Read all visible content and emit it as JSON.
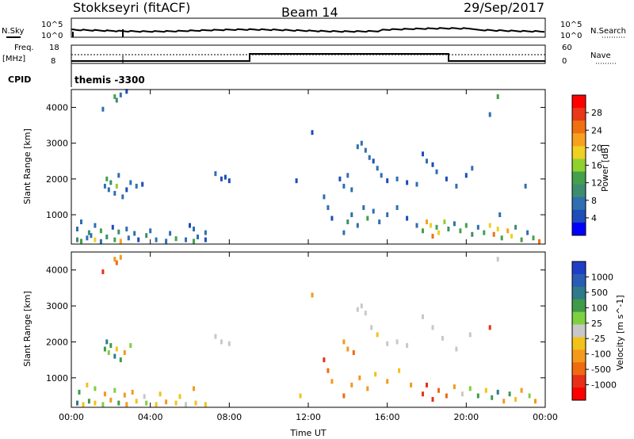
{
  "header": {
    "station": "Stokkseyri (fitACF)",
    "beam": "Beam 14",
    "date": "29/Sep/2017"
  },
  "top_panels": {
    "nsky_label": "N.Sky",
    "nsky_ticks": [
      "10^5",
      "10^0"
    ],
    "nsearch_label": "N.Search",
    "nsearch_ticks": [
      "10^5",
      "10^0"
    ],
    "freq_label_1": "Freq.",
    "freq_label_2": "[MHz]",
    "freq_ticks": [
      "18",
      "8"
    ],
    "nave_label": "Nave",
    "nave_ticks": [
      "60",
      "0"
    ],
    "cpid_label": "CPID",
    "cpid_value": "themis -3300"
  },
  "colors": {
    "power_scale": [
      "#0000ff",
      "#1d4db8",
      "#2f6fb0",
      "#3e8c6f",
      "#44a04a",
      "#8fd12e",
      "#f0d020",
      "#f7a020",
      "#f07010",
      "#e83818",
      "#ff0000"
    ],
    "velocity_scale": [
      "#1e3ec8",
      "#2a5bb5",
      "#2e7a8a",
      "#3f9a4a",
      "#7ed040",
      "#c8c8c8",
      "#f2c21a",
      "#f49a1a",
      "#f06a10",
      "#e83018",
      "#ff0000"
    ]
  },
  "chart_data": [
    {
      "type": "heatmap",
      "name": "power-panel",
      "xlabel": "Time UT",
      "ylabel": "Slant Range [km]",
      "x_ticks": [
        "00:00",
        "04:00",
        "08:00",
        "12:00",
        "16:00",
        "20:00",
        "00:00"
      ],
      "x_range_hours": [
        0,
        24
      ],
      "y_ticks": [
        1000,
        2000,
        3000,
        4000
      ],
      "y_range_km": [
        180,
        4500
      ],
      "colorbar_label": "Power [dB]",
      "colorbar_ticks": [
        "4",
        "8",
        "12",
        "16",
        "20",
        "24",
        "28"
      ],
      "colorbar_range": [
        0,
        30
      ],
      "points": [
        [
          0.3,
          300,
          10
        ],
        [
          0.5,
          260,
          14
        ],
        [
          0.8,
          350,
          6
        ],
        [
          1.0,
          420,
          8
        ],
        [
          1.2,
          300,
          18
        ],
        [
          1.5,
          250,
          6
        ],
        [
          1.8,
          380,
          9
        ],
        [
          2.2,
          300,
          12
        ],
        [
          2.5,
          260,
          22
        ],
        [
          2.9,
          350,
          7
        ],
        [
          3.4,
          300,
          5
        ],
        [
          3.8,
          420,
          10
        ],
        [
          4.3,
          300,
          6
        ],
        [
          4.8,
          260,
          8
        ],
        [
          5.3,
          330,
          12
        ],
        [
          5.8,
          300,
          6
        ],
        [
          6.2,
          260,
          14
        ],
        [
          6.4,
          380,
          8
        ],
        [
          6.8,
          300,
          5
        ],
        [
          0.3,
          600,
          8
        ],
        [
          0.5,
          800,
          6
        ],
        [
          0.9,
          500,
          10
        ],
        [
          1.2,
          700,
          7
        ],
        [
          1.5,
          550,
          12
        ],
        [
          2.1,
          650,
          5
        ],
        [
          2.4,
          520,
          9
        ],
        [
          2.8,
          600,
          6
        ],
        [
          3.2,
          480,
          8
        ],
        [
          4.0,
          550,
          6
        ],
        [
          5.0,
          480,
          6
        ],
        [
          6.0,
          700,
          5
        ],
        [
          6.2,
          600,
          7
        ],
        [
          6.8,
          500,
          6
        ],
        [
          1.7,
          1800,
          8
        ],
        [
          1.8,
          2000,
          12
        ],
        [
          1.9,
          1700,
          6
        ],
        [
          2.0,
          1900,
          10
        ],
        [
          2.2,
          1600,
          7
        ],
        [
          2.3,
          1800,
          16
        ],
        [
          2.4,
          2100,
          6
        ],
        [
          2.6,
          1500,
          8
        ],
        [
          2.8,
          1700,
          5
        ],
        [
          3.0,
          1900,
          6
        ],
        [
          3.3,
          1800,
          7
        ],
        [
          3.6,
          1850,
          5
        ],
        [
          2.2,
          4300,
          14
        ],
        [
          2.3,
          4200,
          10
        ],
        [
          2.5,
          4350,
          6
        ],
        [
          2.8,
          4450,
          5
        ],
        [
          1.6,
          3950,
          6
        ],
        [
          7.3,
          2150,
          6
        ],
        [
          7.6,
          2000,
          5
        ],
        [
          7.8,
          2050,
          4
        ],
        [
          8.0,
          1950,
          5
        ],
        [
          11.4,
          1950,
          5
        ],
        [
          12.8,
          1500,
          6
        ],
        [
          13.0,
          1200,
          8
        ],
        [
          13.2,
          900,
          5
        ],
        [
          12.2,
          3300,
          4
        ],
        [
          13.6,
          2000,
          5
        ],
        [
          13.8,
          1800,
          7
        ],
        [
          14.0,
          2100,
          6
        ],
        [
          14.2,
          1700,
          8
        ],
        [
          14.5,
          2900,
          6
        ],
        [
          14.7,
          3000,
          8
        ],
        [
          14.9,
          2800,
          7
        ],
        [
          15.1,
          2600,
          6
        ],
        [
          15.3,
          2500,
          5
        ],
        [
          15.5,
          2300,
          7
        ],
        [
          15.7,
          2100,
          6
        ],
        [
          16.0,
          1950,
          5
        ],
        [
          16.5,
          2000,
          6
        ],
        [
          17.0,
          1900,
          5
        ],
        [
          17.5,
          1850,
          6
        ],
        [
          17.8,
          2700,
          5
        ],
        [
          18.0,
          2500,
          6
        ],
        [
          18.3,
          2400,
          5
        ],
        [
          18.5,
          2200,
          7
        ],
        [
          19.0,
          2000,
          5
        ],
        [
          19.5,
          1800,
          6
        ],
        [
          20.0,
          2100,
          5
        ],
        [
          20.3,
          2300,
          6
        ],
        [
          13.8,
          500,
          8
        ],
        [
          14.0,
          800,
          10
        ],
        [
          14.2,
          1000,
          6
        ],
        [
          14.5,
          700,
          8
        ],
        [
          14.8,
          1200,
          6
        ],
        [
          15.0,
          900,
          12
        ],
        [
          15.3,
          1100,
          7
        ],
        [
          15.6,
          800,
          6
        ],
        [
          16.0,
          1000,
          8
        ],
        [
          16.5,
          1200,
          6
        ],
        [
          17.0,
          900,
          5
        ],
        [
          17.5,
          700,
          8
        ],
        [
          17.8,
          550,
          14
        ],
        [
          18.0,
          800,
          22
        ],
        [
          18.2,
          700,
          18
        ],
        [
          18.3,
          400,
          24
        ],
        [
          18.5,
          650,
          12
        ],
        [
          18.6,
          500,
          20
        ],
        [
          18.9,
          800,
          16
        ],
        [
          19.1,
          600,
          10
        ],
        [
          19.4,
          750,
          8
        ],
        [
          19.7,
          550,
          14
        ],
        [
          20.0,
          700,
          12
        ],
        [
          20.3,
          450,
          10
        ],
        [
          20.6,
          650,
          8
        ],
        [
          20.9,
          500,
          12
        ],
        [
          21.2,
          700,
          18
        ],
        [
          21.4,
          450,
          26
        ],
        [
          21.6,
          600,
          20
        ],
        [
          21.8,
          350,
          14
        ],
        [
          22.1,
          550,
          22
        ],
        [
          22.3,
          400,
          18
        ],
        [
          22.5,
          650,
          10
        ],
        [
          22.8,
          300,
          12
        ],
        [
          23.1,
          500,
          8
        ],
        [
          23.4,
          350,
          14
        ],
        [
          23.7,
          250,
          24
        ],
        [
          21.6,
          4300,
          14
        ],
        [
          21.2,
          3800,
          8
        ],
        [
          23.0,
          1800,
          6
        ],
        [
          21.7,
          1000,
          6
        ]
      ]
    },
    {
      "type": "heatmap",
      "name": "velocity-panel",
      "xlabel": "Time UT",
      "ylabel": "Slant Range [km]",
      "x_ticks": [
        "00:00",
        "04:00",
        "08:00",
        "12:00",
        "16:00",
        "20:00",
        "00:00"
      ],
      "x_range_hours": [
        0,
        24
      ],
      "y_ticks": [
        1000,
        2000,
        3000,
        4000
      ],
      "y_range_km": [
        180,
        4500
      ],
      "colorbar_label": "Velocity [m s^-1]",
      "colorbar_ticks": [
        "1000",
        "500",
        "100",
        "25",
        "-25",
        "-100",
        "-500",
        "-1000"
      ],
      "points": [
        [
          0.3,
          300,
          300
        ],
        [
          0.6,
          260,
          -80
        ],
        [
          0.9,
          350,
          150
        ],
        [
          1.2,
          300,
          -30
        ],
        [
          1.6,
          260,
          60
        ],
        [
          2.0,
          380,
          -200
        ],
        [
          2.4,
          300,
          120
        ],
        [
          2.8,
          260,
          -120
        ],
        [
          3.3,
          350,
          -60
        ],
        [
          3.8,
          300,
          80
        ],
        [
          4.3,
          260,
          -40
        ],
        [
          4.8,
          330,
          -150
        ],
        [
          5.3,
          300,
          -80
        ],
        [
          5.8,
          260,
          20
        ],
        [
          6.3,
          300,
          -100
        ],
        [
          6.8,
          260,
          -60
        ],
        [
          0.4,
          600,
          200
        ],
        [
          0.8,
          800,
          -100
        ],
        [
          1.2,
          700,
          60
        ],
        [
          1.7,
          550,
          -200
        ],
        [
          2.2,
          650,
          40
        ],
        [
          2.7,
          520,
          -150
        ],
        [
          3.1,
          600,
          -300
        ],
        [
          3.7,
          480,
          10
        ],
        [
          4.5,
          550,
          -80
        ],
        [
          5.5,
          480,
          -50
        ],
        [
          6.2,
          700,
          -120
        ],
        [
          1.7,
          1800,
          150
        ],
        [
          1.8,
          2000,
          400
        ],
        [
          1.9,
          1700,
          80
        ],
        [
          2.0,
          1900,
          200
        ],
        [
          2.2,
          1600,
          300
        ],
        [
          2.3,
          1800,
          -80
        ],
        [
          2.5,
          1500,
          100
        ],
        [
          2.7,
          1700,
          -150
        ],
        [
          3.0,
          1900,
          50
        ],
        [
          2.2,
          4300,
          -250
        ],
        [
          2.3,
          4200,
          -400
        ],
        [
          2.5,
          4350,
          -300
        ],
        [
          1.6,
          3950,
          -600
        ],
        [
          7.3,
          2150,
          10
        ],
        [
          7.6,
          2000,
          0
        ],
        [
          8.0,
          1950,
          -10
        ],
        [
          12.8,
          1500,
          -700
        ],
        [
          13.0,
          1200,
          -500
        ],
        [
          13.2,
          900,
          -200
        ],
        [
          11.6,
          500,
          -100
        ],
        [
          12.2,
          3300,
          -120
        ],
        [
          13.8,
          2000,
          -300
        ],
        [
          14.0,
          1800,
          -150
        ],
        [
          14.3,
          1700,
          -400
        ],
        [
          14.5,
          2900,
          10
        ],
        [
          14.7,
          3000,
          -20
        ],
        [
          14.9,
          2800,
          0
        ],
        [
          15.2,
          2400,
          -10
        ],
        [
          15.5,
          2200,
          -60
        ],
        [
          16.0,
          1950,
          5
        ],
        [
          16.5,
          2000,
          -10
        ],
        [
          17.0,
          1900,
          10
        ],
        [
          17.8,
          2700,
          0
        ],
        [
          18.3,
          2400,
          15
        ],
        [
          18.8,
          2100,
          -5
        ],
        [
          19.5,
          1800,
          0
        ],
        [
          20.2,
          2200,
          -10
        ],
        [
          13.8,
          500,
          -400
        ],
        [
          14.2,
          800,
          -150
        ],
        [
          14.6,
          1000,
          -300
        ],
        [
          15.0,
          700,
          -120
        ],
        [
          15.4,
          1100,
          -60
        ],
        [
          16.0,
          900,
          -200
        ],
        [
          16.6,
          1200,
          -80
        ],
        [
          17.2,
          800,
          -300
        ],
        [
          17.8,
          550,
          -800
        ],
        [
          18.0,
          800,
          -600
        ],
        [
          18.3,
          400,
          -900
        ],
        [
          18.6,
          650,
          -400
        ],
        [
          19.0,
          500,
          -500
        ],
        [
          19.4,
          750,
          -120
        ],
        [
          19.8,
          550,
          20
        ],
        [
          20.2,
          700,
          80
        ],
        [
          20.6,
          500,
          150
        ],
        [
          21.0,
          650,
          -60
        ],
        [
          21.3,
          450,
          200
        ],
        [
          21.6,
          600,
          400
        ],
        [
          21.9,
          350,
          -200
        ],
        [
          22.2,
          550,
          100
        ],
        [
          22.5,
          400,
          -80
        ],
        [
          22.8,
          650,
          -300
        ],
        [
          23.2,
          500,
          30
        ],
        [
          23.5,
          350,
          -150
        ],
        [
          21.6,
          4300,
          -20
        ],
        [
          21.2,
          2400,
          -800
        ]
      ]
    }
  ]
}
